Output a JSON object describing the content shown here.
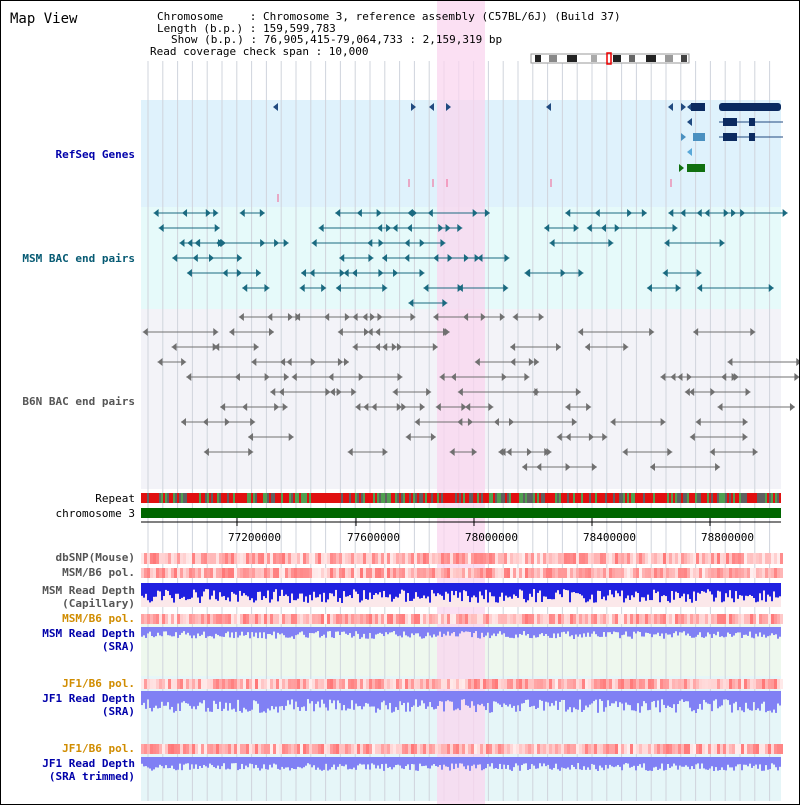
{
  "title": "Map View",
  "info": {
    "chromosome": "Chromosome    : Chromosome 3, reference assembly (C57BL/6J) (Build 37)",
    "length": "Length (b.p.) : 159,599,783",
    "show": "Show (b.p.) : 76,905,415-79,064,733 : 2,159,319 bp",
    "coverage": "Read coverage check span : 10,000"
  },
  "tracks": {
    "refseq": "RefSeq Genes",
    "msm_bac": "MSM BAC end pairs",
    "b6n_bac": "B6N BAC end pairs",
    "repeat": "Repeat",
    "chromosome": "chromosome 3",
    "dbsnp": "dbSNP(Mouse)",
    "msm_pol1": "MSM/B6 pol.",
    "msm_depth_cap_1": "MSM Read Depth",
    "msm_depth_cap_2": "(Capillary)",
    "msm_pol2": "MSM/B6 pol.",
    "msm_depth_sra_1": "MSM Read Depth",
    "msm_depth_sra_2": "(SRA)",
    "jf1_pol1": "JF1/B6 pol.",
    "jf1_depth_1": "JF1 Read Depth",
    "jf1_depth_2": "(SRA)",
    "jf1_pol2": "JF1/B6 pol.",
    "jf1_trim_1": "JF1 Read Depth",
    "jf1_trim_2": "(SRA trimmed)"
  },
  "axis_ticks": [
    "77200000",
    "77600000",
    "78000000",
    "78400000",
    "78800000"
  ],
  "colors": {
    "refseq_bg": "#dff2fc",
    "msm_bg": "#e6fafa",
    "b6n_bg": "#f3f3f8",
    "highlight": "#f9d6ef",
    "chrom_bar": "#006600",
    "depth_blue": "#2020e0",
    "depth_light": "#8080f4"
  }
}
